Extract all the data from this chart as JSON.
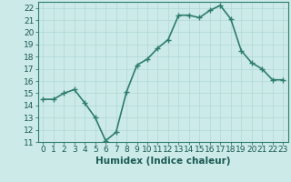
{
  "x": [
    0,
    1,
    2,
    3,
    4,
    5,
    6,
    7,
    8,
    9,
    10,
    11,
    12,
    13,
    14,
    15,
    16,
    17,
    18,
    19,
    20,
    21,
    22,
    23
  ],
  "y": [
    14.5,
    14.5,
    15.0,
    15.3,
    14.2,
    13.0,
    11.1,
    11.8,
    15.1,
    17.3,
    17.8,
    18.7,
    19.4,
    21.4,
    21.4,
    21.2,
    21.8,
    22.2,
    21.1,
    18.5,
    17.5,
    17.0,
    16.1,
    16.1
  ],
  "xlim": [
    -0.5,
    23.5
  ],
  "ylim": [
    11,
    22.5
  ],
  "yticks": [
    11,
    12,
    13,
    14,
    15,
    16,
    17,
    18,
    19,
    20,
    21,
    22
  ],
  "xticks": [
    0,
    1,
    2,
    3,
    4,
    5,
    6,
    7,
    8,
    9,
    10,
    11,
    12,
    13,
    14,
    15,
    16,
    17,
    18,
    19,
    20,
    21,
    22,
    23
  ],
  "xlabel": "Humidex (Indice chaleur)",
  "line_color": "#2e7d6e",
  "marker_color": "#2e7d6e",
  "bg_color": "#cceae8",
  "grid_color": "#b0d8d4",
  "tick_label_fontsize": 6.5,
  "xlabel_fontsize": 7.5,
  "line_width": 1.2,
  "marker_size": 2.5
}
